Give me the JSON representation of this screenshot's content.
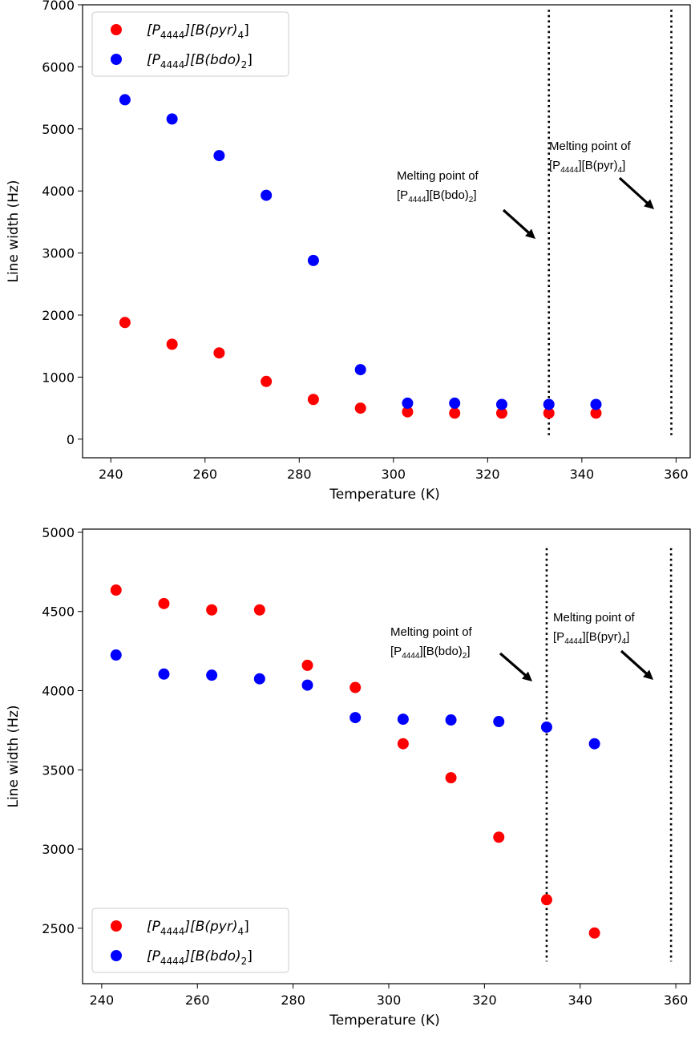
{
  "chart_data": [
    {
      "type": "scatter",
      "xlabel": "Temperature (K)",
      "ylabel": "Line width (Hz)",
      "xlim": [
        234,
        363
      ],
      "ylim": [
        -300,
        7000
      ],
      "xticks": [
        "240",
        "260",
        "280",
        "300",
        "320",
        "340",
        "360"
      ],
      "yticks": [
        "0",
        "1000",
        "2000",
        "3000",
        "4000",
        "5000",
        "6000",
        "7000"
      ],
      "legend_position": "top-left",
      "series": [
        {
          "name": "[P4444][B(pyr)4]",
          "name_main": "[P",
          "name_sub1": "4444",
          "name_mid": "][B(pyr)",
          "name_sub2": "4",
          "name_end": "]",
          "color": "#ff0000",
          "x": [
            243,
            253,
            263,
            273,
            283,
            293,
            303,
            313,
            323,
            333,
            343
          ],
          "y": [
            1880,
            1530,
            1390,
            930,
            640,
            500,
            440,
            420,
            420,
            420,
            420
          ]
        },
        {
          "name": "[P4444][B(bdo)2]",
          "name_main": "[P",
          "name_sub1": "4444",
          "name_mid": "][B(bdo)",
          "name_sub2": "2",
          "name_end": "]",
          "color": "#0000ff",
          "x": [
            243,
            253,
            263,
            273,
            283,
            293,
            303,
            313,
            323,
            333,
            343
          ],
          "y": [
            5470,
            5160,
            4570,
            3930,
            2880,
            1120,
            580,
            580,
            560,
            560,
            560
          ]
        }
      ],
      "vlines": [
        {
          "x": 333,
          "y_from": 60,
          "y_to": 6920
        },
        {
          "x": 359,
          "y_from": 60,
          "y_to": 6920
        }
      ],
      "annotations": [
        {
          "line1": "Melting point of",
          "l2_a": "[P",
          "l2_sub1": "4444",
          "l2_b": "][B(bdo)",
          "l2_sub2": "2",
          "l2_c": "]"
        },
        {
          "line1": "Melting point of",
          "l2_a": "[P",
          "l2_sub1": "4444",
          "l2_b": "][B(pyr)",
          "l2_sub2": "4",
          "l2_c": "]"
        }
      ]
    },
    {
      "type": "scatter",
      "xlabel": "Temperature (K)",
      "ylabel": "Line width (Hz)",
      "xlim": [
        236,
        363
      ],
      "ylim": [
        2150,
        5020
      ],
      "xticks": [
        "240",
        "260",
        "280",
        "300",
        "320",
        "340",
        "360"
      ],
      "yticks": [
        "2500",
        "3000",
        "3500",
        "4000",
        "4500",
        "5000"
      ],
      "legend_position": "bottom-left",
      "series": [
        {
          "name": "[P4444][B(pyr)4]",
          "name_main": "[P",
          "name_sub1": "4444",
          "name_mid": "][B(pyr)",
          "name_sub2": "4",
          "name_end": "]",
          "color": "#ff0000",
          "x": [
            243,
            253,
            263,
            273,
            283,
            293,
            303,
            313,
            323,
            333,
            343
          ],
          "y": [
            4635,
            4550,
            4510,
            4510,
            4160,
            4020,
            3665,
            3450,
            3075,
            2680,
            2470
          ]
        },
        {
          "name": "[P4444][B(bdo)2]",
          "name_main": "[P",
          "name_sub1": "4444",
          "name_mid": "][B(bdo)",
          "name_sub2": "2",
          "name_end": "]",
          "color": "#0000ff",
          "x": [
            243,
            253,
            263,
            273,
            283,
            293,
            303,
            313,
            323,
            333,
            343
          ],
          "y": [
            4225,
            4105,
            4098,
            4075,
            4035,
            3830,
            3820,
            3815,
            3805,
            3770,
            3665
          ]
        }
      ],
      "vlines": [
        {
          "x": 333,
          "y_from": 2290,
          "y_to": 4900
        },
        {
          "x": 359,
          "y_from": 2290,
          "y_to": 4900
        }
      ],
      "annotations": [
        {
          "line1": "Melting point of",
          "l2_a": "[P",
          "l2_sub1": "4444",
          "l2_b": "][B(bdo)",
          "l2_sub2": "2",
          "l2_c": "]"
        },
        {
          "line1": "Melting point of",
          "l2_a": "[P",
          "l2_sub1": "4444",
          "l2_b": "][B(pyr)",
          "l2_sub2": "4",
          "l2_c": "]"
        }
      ]
    }
  ]
}
